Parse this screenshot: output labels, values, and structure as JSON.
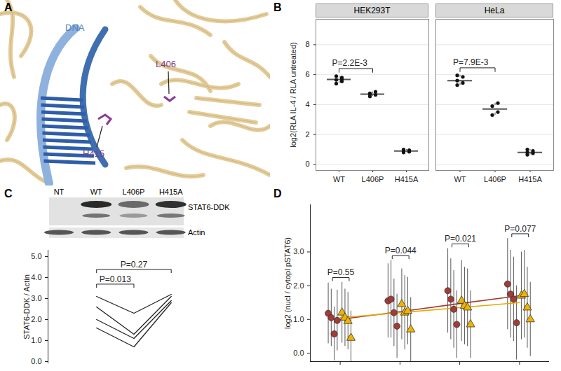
{
  "panel_labels": [
    "A",
    "B",
    "C",
    "D"
  ],
  "structure": {
    "labels": [
      "DNA",
      "L406",
      "H415"
    ]
  },
  "chart_data": [
    {
      "type": "box",
      "title": "HEK293T",
      "ylabel": "log2(RLA IL-4 / RLA untreated)",
      "categories": [
        "WT",
        "L406P",
        "H415A"
      ],
      "values": [
        [
          5.4,
          5.55,
          5.65,
          5.8,
          5.9,
          5.7
        ],
        [
          4.55,
          4.65,
          4.75,
          4.85,
          4.7
        ],
        [
          0.8,
          0.85,
          0.9,
          0.95,
          1.0
        ]
      ],
      "color": "#111111",
      "ylim": [
        -0.4,
        9.7
      ],
      "yticks": [
        0,
        2,
        4,
        6,
        8
      ],
      "grid": true,
      "annotations": [
        {
          "text": "P=2.2E-3",
          "from": "WT",
          "to": "L406P"
        }
      ]
    },
    {
      "type": "box",
      "title": "HeLa",
      "categories": [
        "WT",
        "L406P",
        "H415A"
      ],
      "values": [
        [
          5.3,
          5.45,
          5.6,
          5.85,
          5.95
        ],
        [
          3.3,
          3.5,
          3.9,
          4.1
        ],
        [
          0.65,
          0.75,
          0.8,
          0.9,
          1.0
        ]
      ],
      "color": "#111111",
      "ylim": [
        -0.4,
        9.7
      ],
      "yticks": [
        0,
        2,
        4,
        6,
        8
      ],
      "grid": true,
      "tick_labels": "x",
      "annotations": [
        {
          "text": "P=7.9E-3",
          "from": "WT",
          "to": "L406P"
        }
      ]
    },
    {
      "type": "blot",
      "lanes": [
        "NT",
        "WT",
        "L406P",
        "H415A"
      ],
      "bands": [
        "STAT6-DDK",
        "Actin"
      ]
    },
    {
      "type": "line",
      "ylabel": "STAT6-DDK / Actin",
      "categories": [
        null,
        null,
        null
      ],
      "series": [
        {
          "values": [
            3.1,
            2.3,
            3.2
          ]
        },
        {
          "values": [
            2.6,
            1.3,
            3.1
          ]
        },
        {
          "values": [
            2.0,
            1.1,
            2.9
          ]
        },
        {
          "values": [
            1.6,
            0.7,
            2.8
          ]
        }
      ],
      "color": "#222222",
      "ylim": [
        -0.1,
        5.3
      ],
      "yticks": [
        0,
        1,
        2,
        3,
        4,
        5
      ],
      "tick_labels": "y",
      "annotations": [
        {
          "text": "P=0.013",
          "from": 0,
          "to": 1
        },
        {
          "text": "P=0.27",
          "from": 0,
          "to": 2
        }
      ]
    },
    {
      "type": "scatter",
      "ylabel": "log2 (nucl / cytopl pSTAT6)",
      "categories": [
        null,
        null,
        null,
        null
      ],
      "series": [
        {
          "color": "#a33b36",
          "marker": "circle",
          "values": [
            [
              1.18,
              1.05,
              0.57,
              0.97
            ],
            [
              1.55,
              1.6,
              1.2,
              0.8
            ],
            [
              1.85,
              1.6,
              1.3,
              0.85
            ],
            [
              2.05,
              1.75,
              1.6,
              0.9
            ]
          ],
          "error": [
            [
              0.9,
              0.85,
              0.8,
              0.9
            ],
            [
              1.1,
              1.15,
              1.0,
              0.95
            ],
            [
              1.25,
              1.2,
              1.15,
              1.0
            ],
            [
              1.35,
              1.3,
              1.25,
              1.1
            ]
          ]
        },
        {
          "color": "#f0b400",
          "marker": "triangle",
          "values": [
            [
              1.2,
              1.05,
              0.95,
              0.45
            ],
            [
              1.45,
              1.2,
              1.25,
              0.7
            ],
            [
              1.55,
              1.4,
              1.35,
              0.85
            ],
            [
              1.7,
              1.75,
              1.35,
              1.0
            ]
          ],
          "error": [
            [
              0.9,
              0.85,
              0.85,
              0.8
            ],
            [
              1.05,
              1.1,
              1.0,
              0.95
            ],
            [
              1.2,
              1.15,
              1.15,
              1.0
            ],
            [
              1.3,
              1.3,
              1.2,
              1.1
            ]
          ]
        },
        {
          "type": "line",
          "color": "#a33b36",
          "values": [
            1.0,
            1.23,
            1.47,
            1.7
          ]
        },
        {
          "type": "line",
          "color": "#e8a800",
          "values": [
            1.05,
            1.2,
            1.35,
            1.5
          ]
        }
      ],
      "ylim": [
        -0.25,
        4.4
      ],
      "yticks": [
        0,
        1,
        2,
        3
      ],
      "tick_labels": "y",
      "annotations": [
        {
          "text": "P=0.55",
          "category": 0
        },
        {
          "text": "P=0.044",
          "category": 1
        },
        {
          "text": "P=0.021",
          "category": 2
        },
        {
          "text": "P=0.077",
          "category": 3
        }
      ]
    }
  ]
}
